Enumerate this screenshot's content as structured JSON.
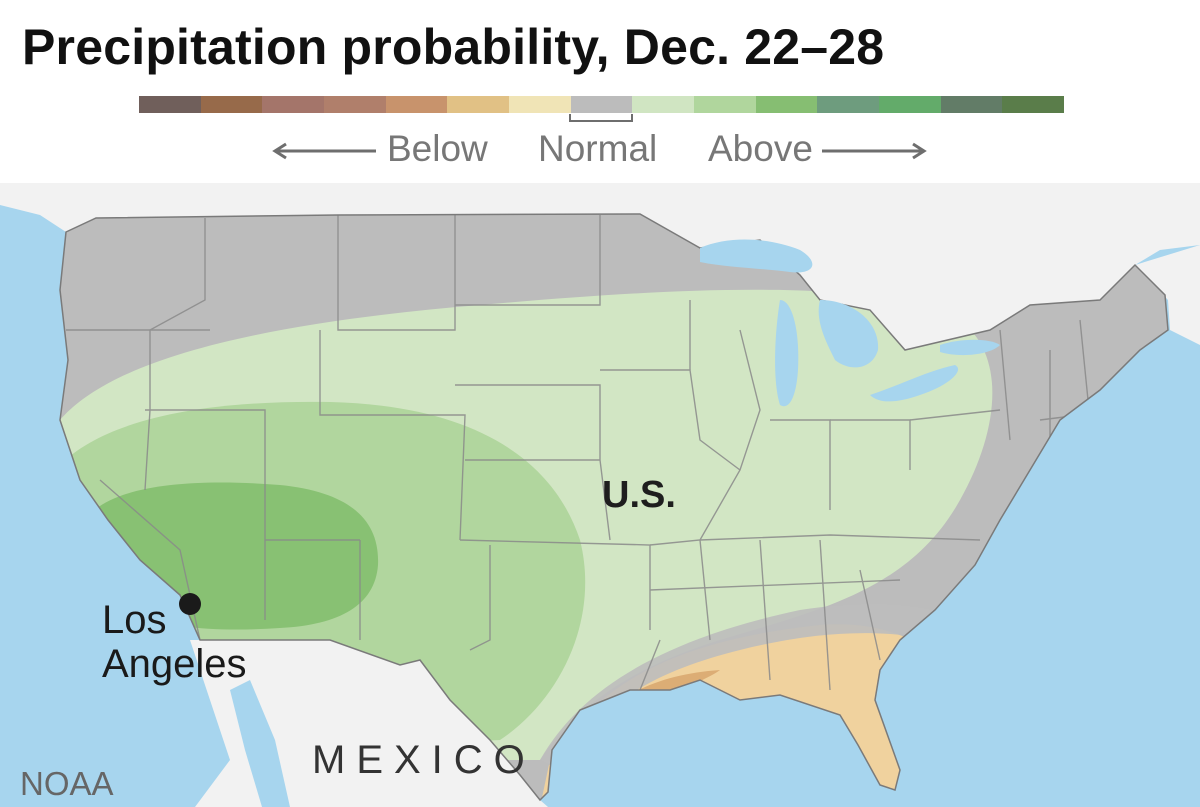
{
  "title": "Precipitation probability, Dec. 22–28",
  "legend": {
    "colors": [
      "#705f5b",
      "#976a4a",
      "#a4756a",
      "#b07f6b",
      "#c8936c",
      "#e1c185",
      "#f0e4b6",
      "#bcbcbc",
      "#d0e5c2",
      "#b0d69d",
      "#86be72",
      "#6e9c7e",
      "#63ab6a",
      "#627c67",
      "#5a7d4a"
    ],
    "below_label": "Below",
    "normal_label": "Normal",
    "above_label": "Above"
  },
  "map": {
    "country_label": "U.S.",
    "city_label": "Los Angeles",
    "neighbor_label": "MEXICO",
    "source": "NOAA",
    "colors": {
      "water": "#a7d5ee",
      "land_outside": "#f2f2f2",
      "normal": "#bcbcbc",
      "above_light": "#d2e6c4",
      "above_medium": "#b1d69e",
      "above_high": "#88c173",
      "below_light": "#f0d29e",
      "below_medium": "#dcad75",
      "borders": "#888888"
    }
  }
}
